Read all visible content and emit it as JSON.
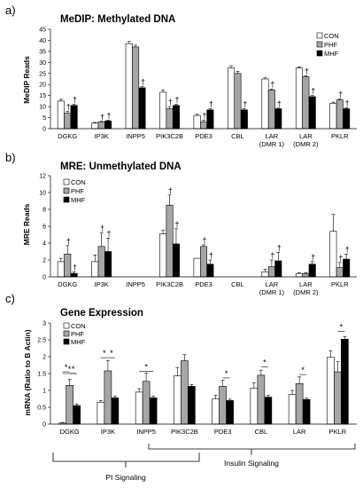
{
  "figure": {
    "bracket_labels": [
      "PI Signaling",
      "Insulin Signaling"
    ]
  },
  "chart_data": [
    {
      "type": "bar",
      "panel_label": "a)",
      "title": "MeDIP: Methylated DNA",
      "ylabel": "MeDIP Reads",
      "ylim": [
        0,
        45
      ],
      "yticks": [
        0,
        5,
        10,
        15,
        20,
        25,
        30,
        35,
        40,
        45
      ],
      "categories": [
        "DGKG",
        "IP3K",
        "INPP5",
        "PIK3C2B",
        "PDE3",
        "CBL",
        "LAR\n(DMR 1)",
        "LAR\n(DMR 2)",
        "PKLR"
      ],
      "legend_position": "top-right",
      "series": [
        {
          "name": "CON",
          "color": "#ffffff",
          "values": [
            12.5,
            2.5,
            38.5,
            16.5,
            6.0,
            27.5,
            22.5,
            27.5,
            11.5
          ],
          "errors": [
            0.8,
            0.3,
            1.0,
            1.0,
            0.5,
            1.0,
            0.5,
            0.5,
            0.5
          ]
        },
        {
          "name": "PHF",
          "color": "#a6a6a6",
          "values": [
            7.0,
            3.0,
            37.0,
            9.0,
            3.0,
            25.0,
            17.5,
            23.5,
            13.0
          ],
          "errors": [
            0.8,
            0.3,
            0.8,
            1.0,
            0.8,
            1.0,
            0.5,
            0.5,
            0.5
          ]
        },
        {
          "name": "MHF",
          "color": "#000000",
          "values": [
            10.5,
            3.5,
            18.5,
            10.5,
            8.5,
            8.5,
            9.0,
            14.5,
            9.0
          ],
          "errors": [
            0.5,
            0.3,
            0.5,
            0.5,
            0.5,
            0.5,
            0.3,
            0.5,
            0.5
          ]
        }
      ],
      "annotations": [
        {
          "category": 0,
          "series": 1,
          "text": "†"
        },
        {
          "category": 0,
          "series": 2,
          "text": "†"
        },
        {
          "category": 1,
          "series": 1,
          "text": "†"
        },
        {
          "category": 1,
          "series": 2,
          "text": "†"
        },
        {
          "category": 2,
          "series": 2,
          "text": "†"
        },
        {
          "category": 3,
          "series": 1,
          "text": "†"
        },
        {
          "category": 3,
          "series": 2,
          "text": "†"
        },
        {
          "category": 4,
          "series": 1,
          "text": "†"
        },
        {
          "category": 4,
          "series": 2,
          "text": "†"
        },
        {
          "category": 5,
          "series": 2,
          "text": "†"
        },
        {
          "category": 6,
          "series": 1,
          "text": "†"
        },
        {
          "category": 6,
          "series": 2,
          "text": "†"
        },
        {
          "category": 7,
          "series": 1,
          "text": "†"
        },
        {
          "category": 7,
          "series": 2,
          "text": "†"
        },
        {
          "category": 8,
          "series": 1,
          "text": "†"
        },
        {
          "category": 8,
          "series": 2,
          "text": "†"
        }
      ]
    },
    {
      "type": "bar",
      "panel_label": "b)",
      "title": "MRE: Unmethylated DNA",
      "ylabel": "MRE Reads",
      "ylim": [
        0,
        12
      ],
      "yticks": [
        0,
        2,
        4,
        6,
        8,
        10,
        12
      ],
      "categories": [
        "DGKG",
        "IP3K",
        "INPP5",
        "PIK3C2B",
        "PDE3",
        "CBL",
        "LAR\n(DMR 1)",
        "LAR\n(DMR 2)",
        "PKLR"
      ],
      "legend_position": "top-left",
      "series": [
        {
          "name": "CON",
          "color": "#ffffff",
          "values": [
            1.8,
            1.8,
            0,
            5.1,
            2.2,
            0,
            0.6,
            0.4,
            5.4
          ],
          "errors": [
            0.4,
            0.8,
            0,
            0.4,
            0,
            0,
            0.3,
            0.1,
            2.0
          ]
        },
        {
          "name": "PHF",
          "color": "#a6a6a6",
          "values": [
            2.7,
            3.6,
            0,
            8.5,
            3.6,
            0,
            1.2,
            0.4,
            1.1
          ],
          "errors": [
            1.0,
            1.6,
            0,
            1.2,
            0.2,
            0,
            0.8,
            0.1,
            0.6
          ]
        },
        {
          "name": "MHF",
          "color": "#000000",
          "values": [
            0.4,
            3.0,
            0,
            3.9,
            1.5,
            0,
            1.9,
            1.5,
            2.1
          ],
          "errors": [
            0.2,
            1.6,
            0,
            1.8,
            0.5,
            0,
            1.0,
            0.3,
            0.6
          ]
        }
      ],
      "annotations": [
        {
          "category": 0,
          "series": 1,
          "text": "†"
        },
        {
          "category": 0,
          "series": 2,
          "text": "†"
        },
        {
          "category": 1,
          "series": 1,
          "text": "†"
        },
        {
          "category": 1,
          "series": 2,
          "text": "†"
        },
        {
          "category": 3,
          "series": 1,
          "text": "†"
        },
        {
          "category": 3,
          "series": 2,
          "text": "†"
        },
        {
          "category": 4,
          "series": 1,
          "text": "†"
        },
        {
          "category": 4,
          "series": 2,
          "text": "†"
        },
        {
          "category": 6,
          "series": 1,
          "text": "†"
        },
        {
          "category": 6,
          "series": 2,
          "text": "†"
        },
        {
          "category": 7,
          "series": 2,
          "text": "†"
        },
        {
          "category": 8,
          "series": 1,
          "text": "†"
        },
        {
          "category": 8,
          "series": 2,
          "text": "†"
        }
      ]
    },
    {
      "type": "bar",
      "panel_label": "c)",
      "title": "Gene Expression",
      "ylabel": "mRNA (Ratio to B Actin)",
      "ylim": [
        0,
        3
      ],
      "yticks": [
        0,
        0.5,
        1,
        1.5,
        2,
        2.5,
        3
      ],
      "ytick_labels": [
        "0",
        "0.5",
        "1",
        "1.5",
        "2",
        "2.5",
        "3"
      ],
      "categories": [
        "DGKG",
        "IP3K",
        "INPP5",
        "PIK3C2B",
        "PDE3",
        "CBL",
        "LAR",
        "PKLR"
      ],
      "legend_position": "top-left",
      "series": [
        {
          "name": "CON",
          "color": "#ffffff",
          "values": [
            0.03,
            0.65,
            0.95,
            1.43,
            0.75,
            1.07,
            0.88,
            1.98
          ],
          "errors": [
            0.02,
            0.05,
            0.1,
            0.25,
            0.1,
            0.15,
            0.12,
            0.2
          ]
        },
        {
          "name": "PHF",
          "color": "#a6a6a6",
          "values": [
            1.15,
            1.58,
            1.27,
            1.88,
            1.12,
            1.45,
            1.2,
            1.55
          ],
          "errors": [
            0.18,
            0.3,
            0.25,
            0.18,
            0.18,
            0.15,
            0.2,
            0.3
          ]
        },
        {
          "name": "MHF",
          "color": "#000000",
          "values": [
            0.55,
            0.78,
            0.78,
            1.12,
            0.7,
            0.8,
            0.73,
            2.52
          ],
          "errors": [
            0.04,
            0.05,
            0.05,
            0.05,
            0.04,
            0.05,
            0.04,
            0.08
          ]
        }
      ],
      "significance": [
        {
          "category": 0,
          "from": 0,
          "to": 1,
          "level": 1.55,
          "text": "*"
        },
        {
          "category": 0,
          "from": 0,
          "to": 2,
          "level": 1.5,
          "text": "*"
        },
        {
          "category": 0,
          "from": 1,
          "to": 2,
          "level": 1.5,
          "text": "*"
        },
        {
          "category": 1,
          "from": 0,
          "to": 1,
          "level": 1.97,
          "text": "*"
        },
        {
          "category": 1,
          "from": 1,
          "to": 2,
          "level": 1.97,
          "text": "*"
        },
        {
          "category": 2,
          "from": 0,
          "to": 2,
          "level": 1.57,
          "text": "*"
        },
        {
          "category": 4,
          "from": 1,
          "to": 2,
          "level": 1.37,
          "text": "*"
        },
        {
          "category": 5,
          "from": 1,
          "to": 2,
          "level": 1.7,
          "text": "*"
        },
        {
          "category": 6,
          "from": 1,
          "to": 2,
          "level": 1.47,
          "text": "*"
        },
        {
          "category": 7,
          "from": 1,
          "to": 2,
          "level": 2.75,
          "text": "*"
        }
      ]
    }
  ]
}
